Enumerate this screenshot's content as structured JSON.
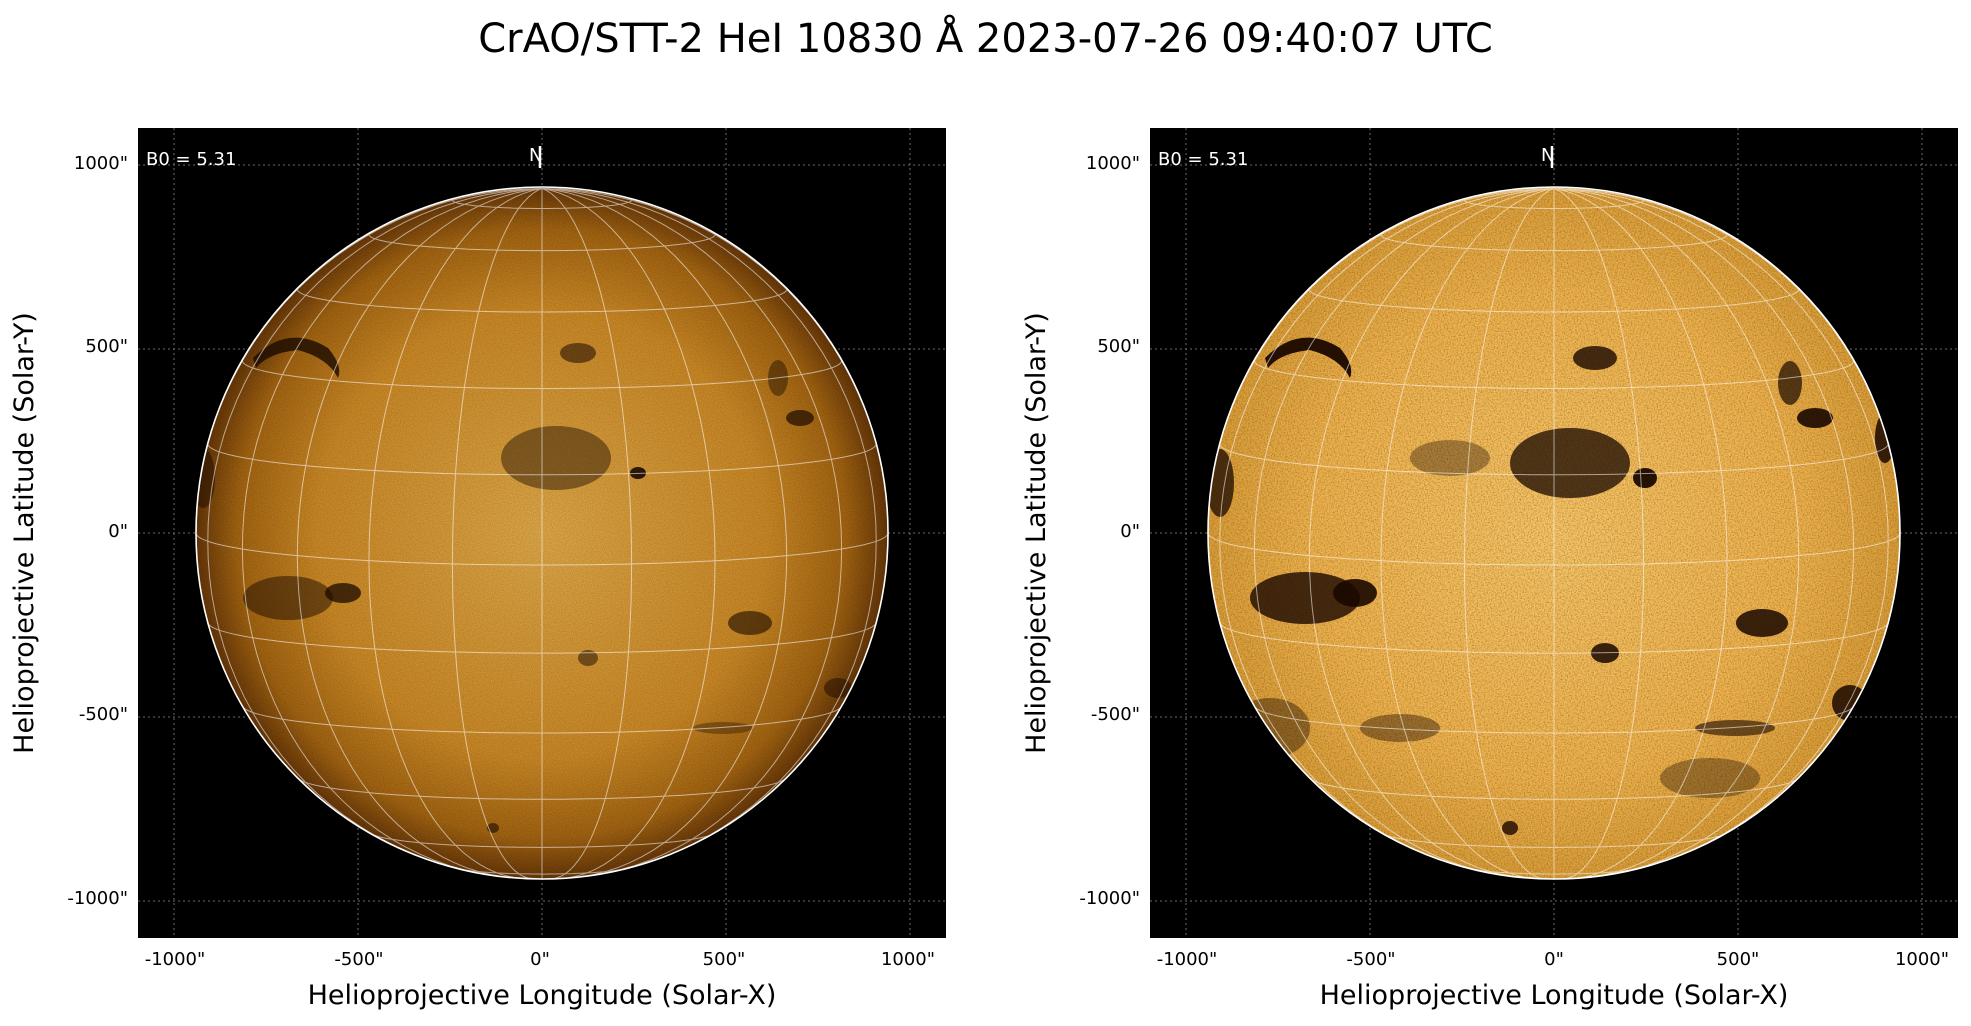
{
  "title": "CrAO/STT-2 HeI 10830 Å 2023-07-26 09:40:07 UTC",
  "colors": {
    "disk_core": "#f0b44a",
    "disk_mid": "#d08a1c",
    "disk_limb": "#6e3a08",
    "grid": "#ffffff",
    "background": "#000000"
  },
  "panels": [
    {
      "b0_label": "B0 = 5.31",
      "north_label": "N",
      "xlabel": "Helioprojective Longitude (Solar-X)",
      "ylabel": "Helioprojective Latitude (Solar-Y)",
      "xticks": [
        "-1000\"",
        "-500\"",
        "0\"",
        "500\"",
        "1000\""
      ],
      "yticks": [
        "1000\"",
        "500\"",
        "0\"",
        "-500\"",
        "-1000\""
      ],
      "style": "smooth"
    },
    {
      "b0_label": "B0 = 5.31",
      "north_label": "N",
      "xlabel": "Helioprojective Longitude (Solar-X)",
      "ylabel": "Helioprojective Latitude (Solar-Y)",
      "xticks": [
        "-1000\"",
        "-500\"",
        "0\"",
        "500\"",
        "1000\""
      ],
      "yticks": [
        "1000\"",
        "500\"",
        "0\"",
        "-500\"",
        "-1000\""
      ],
      "style": "enhanced"
    }
  ]
}
